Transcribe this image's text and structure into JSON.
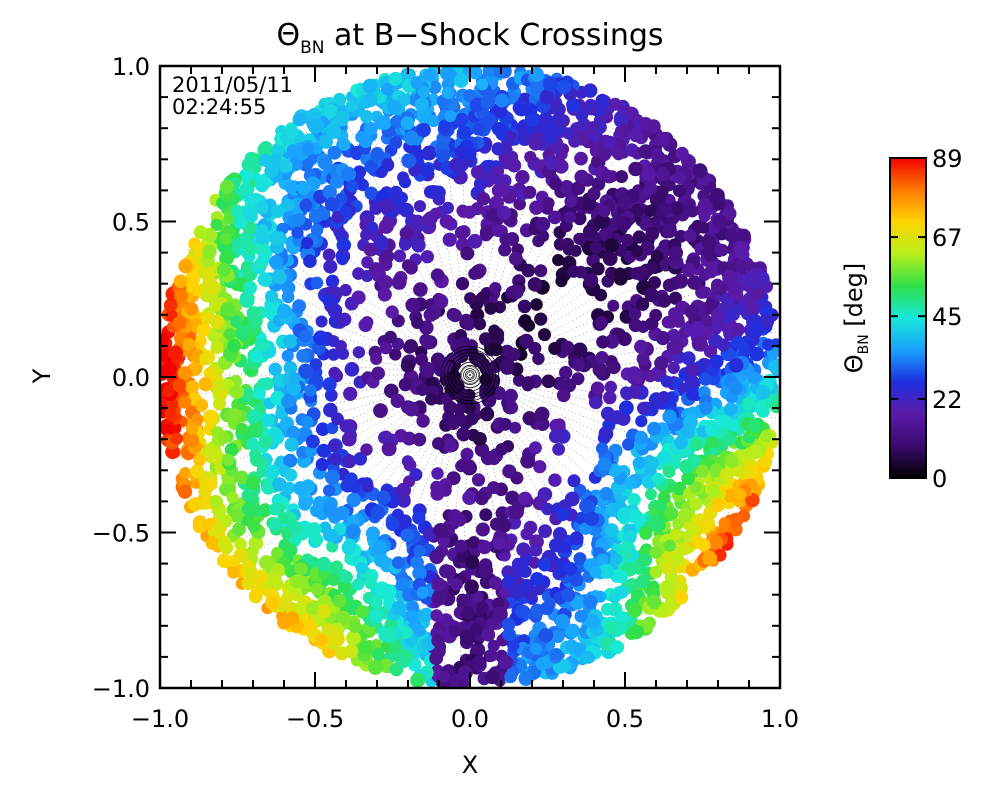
{
  "chart_data": {
    "type": "scatter",
    "title_main": "Θ",
    "title_sub": "BN",
    "title_rest": " at B−Shock Crossings",
    "xlabel": "X",
    "ylabel": "Y",
    "xlim": [
      -1.0,
      1.0
    ],
    "ylim": [
      -1.0,
      1.0
    ],
    "x_ticks": [
      "−1.0",
      "−0.5",
      "0.0",
      "0.5",
      "1.0"
    ],
    "x_tick_values": [
      -1.0,
      -0.5,
      0.0,
      0.5,
      1.0
    ],
    "y_ticks": [
      "1.0",
      "0.5",
      "0.0",
      "−0.5",
      "−1.0"
    ],
    "y_tick_values": [
      1.0,
      0.5,
      0.0,
      -0.5,
      -1.0
    ],
    "annotation_date": "2011/05/11",
    "annotation_time": "02:24:55",
    "colorbar": {
      "label_main": "Θ",
      "label_sub": "BN",
      "label_unit": " [deg]",
      "ticks": [
        "89",
        "67",
        "45",
        "22",
        "0"
      ],
      "tick_values": [
        89,
        67,
        45,
        22,
        0
      ],
      "range": [
        0,
        89
      ],
      "colormap": [
        "#000000",
        "#3a0a6e",
        "#5a1aa8",
        "#1f2fe0",
        "#1aa2ff",
        "#18e8d8",
        "#2ee04a",
        "#b8ee1a",
        "#ffd400",
        "#ff7a00",
        "#f20000"
      ]
    },
    "grid": false,
    "disk_radius": 1.0,
    "description_regions": [
      {
        "name": "left-limb",
        "theta_bn": 75
      },
      {
        "name": "lower-right-limb",
        "theta_bn": 70
      },
      {
        "name": "upper-right",
        "theta_bn": 12
      },
      {
        "name": "upper-left-rim",
        "theta_bn": 25
      },
      {
        "name": "center",
        "theta_bn": 8
      }
    ]
  }
}
